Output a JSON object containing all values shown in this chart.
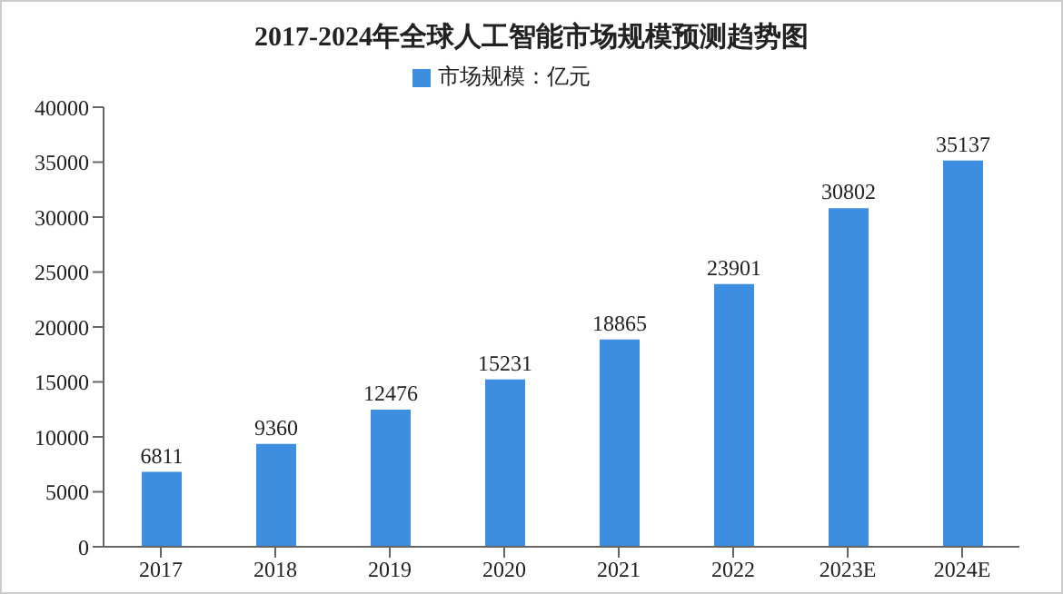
{
  "chart_data": {
    "type": "bar",
    "title": "2017-2024年全球人工智能市场规模预测趋势图",
    "categories": [
      "2017",
      "2018",
      "2019",
      "2020",
      "2021",
      "2022",
      "2023E",
      "2024E"
    ],
    "series": [
      {
        "name": "市场规模：亿元",
        "color": "#3d8ee0",
        "values": [
          6811,
          9360,
          12476,
          15231,
          18865,
          23901,
          30802,
          35137
        ]
      }
    ],
    "ylim": [
      0,
      40000
    ],
    "yticks": [
      0,
      5000,
      10000,
      15000,
      20000,
      25000,
      30000,
      35000,
      40000
    ],
    "grid": false,
    "legend": "top",
    "data_labels": true
  }
}
